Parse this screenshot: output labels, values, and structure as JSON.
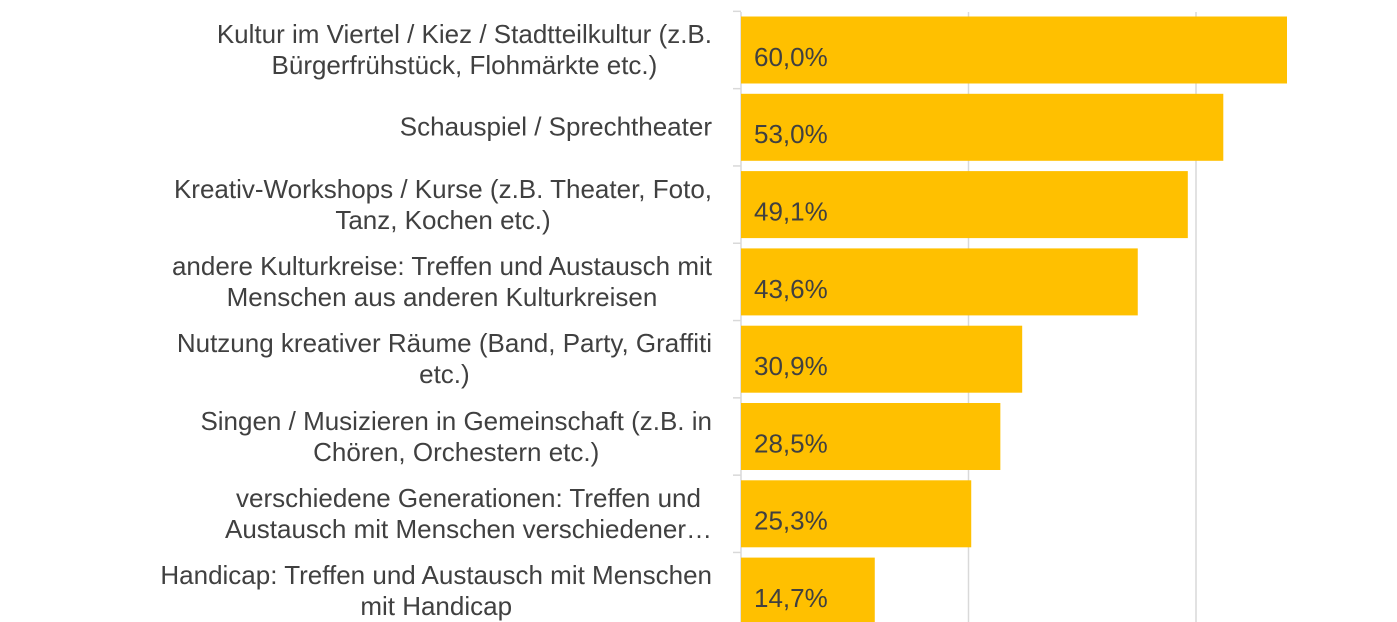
{
  "chart_data": {
    "type": "barh",
    "categories": [
      "Kultur im Viertel / Kiez / Stadtteilkultur (z.B.\nBürgerfrühstück, Flohmärkte etc.)",
      "Schauspiel / Sprechtheater",
      "Kreativ-Workshops / Kurse (z.B. Theater, Foto,\nTanz, Kochen etc.)",
      "andere Kulturkreise: Treffen und Austausch mit\nMenschen aus anderen Kulturkreisen",
      "Nutzung kreativer Räume (Band, Party,  Graffiti\netc.)",
      "Singen / Musizieren in Gemeinschaft (z.B. in\nChören, Orchestern etc.)",
      "verschiedene Generationen: Treffen und\nAustausch mit Menschen  verschiedener…",
      "Handicap: Treffen und Austausch mit Menschen\nmit Handicap"
    ],
    "values": [
      60.0,
      53.0,
      49.1,
      43.6,
      30.9,
      28.5,
      25.3,
      14.7
    ],
    "value_labels": [
      "60,0%",
      "53,0%",
      "49,1%",
      "43,6%",
      "30,9%",
      "28,5%",
      "25,3%",
      "14,7%"
    ],
    "color": "#ffc000",
    "xlim": [
      0,
      70
    ],
    "xticks": [
      0,
      25,
      50
    ],
    "grid": true
  }
}
